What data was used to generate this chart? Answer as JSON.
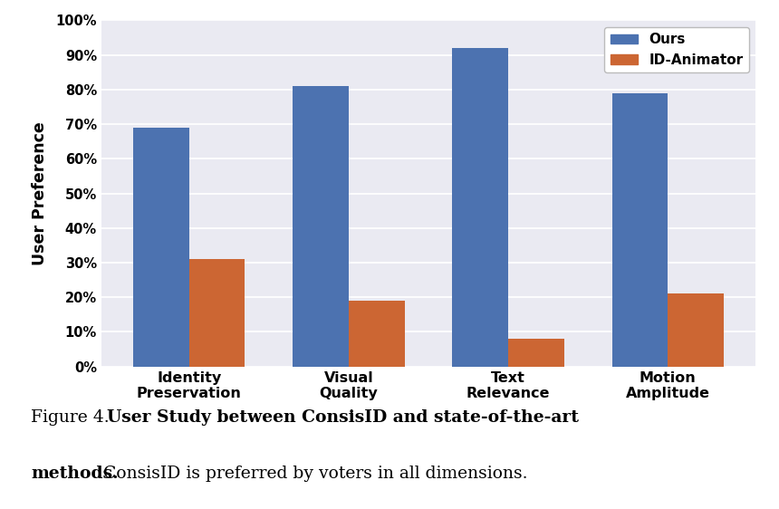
{
  "categories": [
    "Identity\nPreservation",
    "Visual\nQuality",
    "Text\nRelevance",
    "Motion\nAmplitude"
  ],
  "ours_values": [
    69,
    81,
    92,
    79
  ],
  "id_animator_values": [
    31,
    19,
    8,
    21
  ],
  "ours_color": "#4C72B0",
  "id_animator_color": "#CC6633",
  "ylabel": "User Preference",
  "ylim": [
    0,
    100
  ],
  "ytick_labels": [
    "0%",
    "10%",
    "20%",
    "30%",
    "40%",
    "50%",
    "60%",
    "70%",
    "80%",
    "90%",
    "100%"
  ],
  "ytick_values": [
    0,
    10,
    20,
    30,
    40,
    50,
    60,
    70,
    80,
    90,
    100
  ],
  "legend_labels": [
    "Ours",
    "ID-Animator"
  ],
  "background_color": "#EAEAF2",
  "figure_background": "#FFFFFF",
  "bar_width": 0.35,
  "caption_line1_plain": "Figure 4.",
  "caption_line1_bold": "  User Study between ConsisID and state-of-the-art",
  "caption_line2_bold": "methods.",
  "caption_line2_plain": " ConsisID is preferred by voters in all dimensions."
}
